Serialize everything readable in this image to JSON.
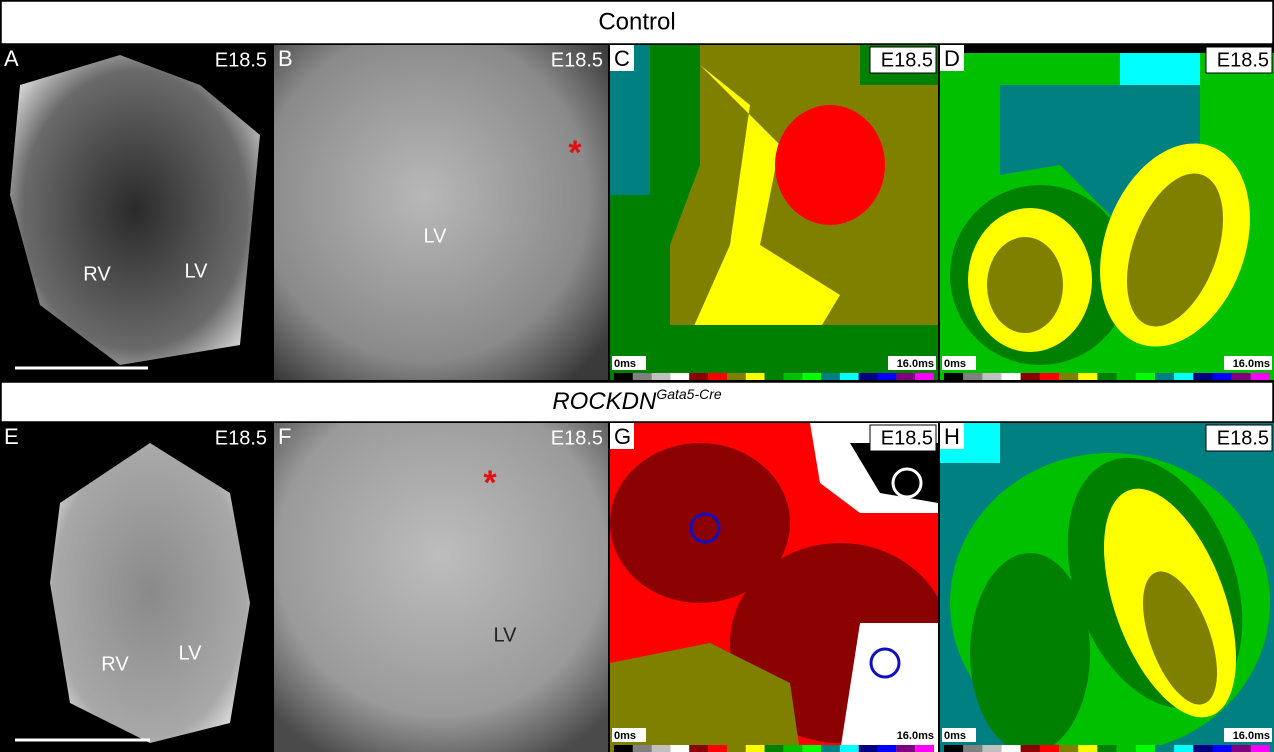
{
  "rows": [
    {
      "title": "Control",
      "panels": [
        {
          "letter": "A",
          "stage": "E18.5",
          "labels": [
            "RV",
            "LV"
          ]
        },
        {
          "letter": "B",
          "stage": "E18.5",
          "labels": [
            "LV"
          ],
          "marker": "*"
        },
        {
          "letter": "C",
          "stage": "E18.5",
          "scale": [
            "0ms",
            "16.0ms"
          ]
        },
        {
          "letter": "D",
          "stage": "E18.5",
          "scale": [
            "0ms",
            "16.0ms"
          ]
        }
      ]
    },
    {
      "title": "ROCKDN",
      "title_sup": "Gata5-Cre",
      "panels": [
        {
          "letter": "E",
          "stage": "E18.5",
          "labels": [
            "RV",
            "LV"
          ]
        },
        {
          "letter": "F",
          "stage": "E18.5",
          "labels": [
            "LV"
          ],
          "marker": "*"
        },
        {
          "letter": "G",
          "stage": "E18.5",
          "scale": [
            "0ms",
            "16.0ms"
          ]
        },
        {
          "letter": "H",
          "stage": "E18.5",
          "scale": [
            "0ms",
            "16.0ms"
          ]
        }
      ]
    }
  ]
}
